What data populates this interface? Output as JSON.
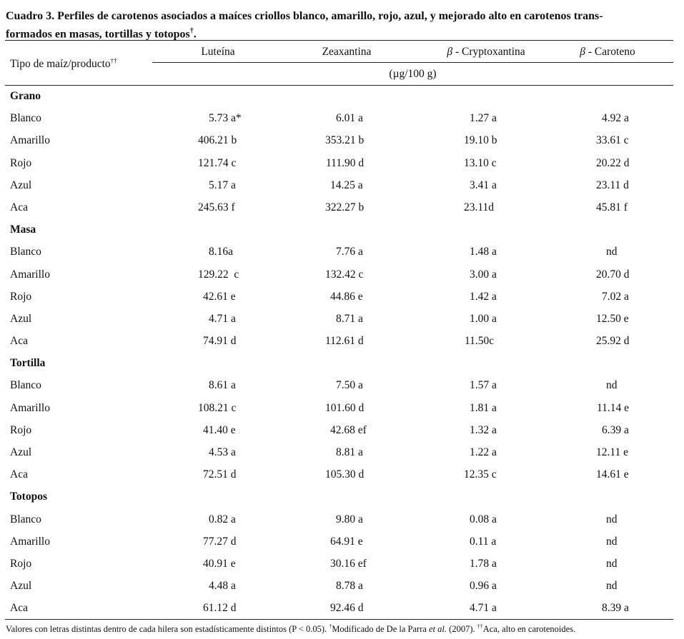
{
  "caption": {
    "line1": "Cuadro 3. Perfiles de carotenos asociados a maíces criollos blanco, amarillo, rojo, azul, y mejorado alto en carotenos trans-",
    "line2_text": "formados en  masas, tortillas y totopos",
    "line2_mark": "†",
    "line2_end": "."
  },
  "header": {
    "tipo": "Tipo de maíz/producto",
    "tipo_mark": "††",
    "col_luteina": "Luteína",
    "col_zeaxantina": "Zeaxantina",
    "col_crypto_greek": "β",
    "col_crypto_text": " - Cryptoxantina",
    "col_caroteno_greek": "β",
    "col_caroteno_text": " - Caroteno",
    "units": "(µg/100 g)"
  },
  "rows": [
    {
      "name": "Grano",
      "section": true
    },
    {
      "name": "Blanco",
      "v": [
        "5.73 a*",
        "6.01 a",
        "1.27 a",
        "4.92 a"
      ]
    },
    {
      "name": "Amarillo",
      "v": [
        "406.21 b",
        "353.21 b",
        "19.10 b",
        "33.61 c"
      ]
    },
    {
      "name": "Rojo",
      "v": [
        "121.74 c",
        "111.90 d",
        "13.10 c",
        "20.22 d"
      ]
    },
    {
      "name": "Azul",
      "v": [
        "5.17 a",
        "14.25 a",
        "3.41 a",
        "23.11 d"
      ]
    },
    {
      "name": "Aca",
      "v": [
        "245.63 f",
        "322.27 b",
        "23.11d",
        "45.81 f"
      ]
    },
    {
      "name": "Masa",
      "section": true
    },
    {
      "name": "Blanco",
      "v": [
        "8.16a",
        "7.76 a",
        "1.48 a",
        "nd"
      ]
    },
    {
      "name": "Amarillo",
      "v": [
        "129.22  c",
        "132.42 c",
        "3.00 a",
        "20.70 d"
      ]
    },
    {
      "name": "Rojo",
      "v": [
        "42.61 e",
        "44.86 e",
        "1.42 a",
        "7.02 a"
      ]
    },
    {
      "name": "Azul",
      "v": [
        "4.71 a",
        "8.71 a",
        "1.00 a",
        "12.50 e"
      ]
    },
    {
      "name": "Aca",
      "v": [
        "74.91 d",
        "112.61 d",
        "11.50c",
        "25.92 d"
      ]
    },
    {
      "name": "Tortilla",
      "section": true
    },
    {
      "name": "Blanco",
      "v": [
        "8.61 a",
        "7.50 a",
        "1.57 a",
        "nd"
      ]
    },
    {
      "name": "Amarillo",
      "v": [
        "108.21 c",
        "101.60 d",
        "1.81 a",
        "11.14 e"
      ]
    },
    {
      "name": "Rojo",
      "v": [
        "41.40 e",
        "42.68 ef",
        "1.32 a",
        "6.39 a"
      ]
    },
    {
      "name": "Azul",
      "v": [
        "4.53 a",
        "8.81 a",
        "1.22 a",
        "12.11 e"
      ]
    },
    {
      "name": "Aca",
      "v": [
        "72.51 d",
        "105.30 d",
        "12.35 c",
        "14.61 e"
      ]
    },
    {
      "name": "Totopos",
      "section": true
    },
    {
      "name": "Blanco",
      "v": [
        "0.82 a",
        "9.80 a",
        "0.08 a",
        "nd"
      ]
    },
    {
      "name": "Amarillo",
      "v": [
        "77.27 d",
        "64.91 e",
        "0.11 a",
        "nd"
      ]
    },
    {
      "name": "Rojo",
      "v": [
        "40.91 e",
        "30.16 ef",
        "1.78 a",
        "nd"
      ]
    },
    {
      "name": "Azul",
      "v": [
        "4.48 a",
        "8.78 a",
        "0.96 a",
        "nd"
      ]
    },
    {
      "name": "Aca",
      "v": [
        "61.12 d",
        "92.46 d",
        "4.71 a",
        "8.39 a"
      ]
    }
  ],
  "footnote": {
    "part1": "Valores con letras distintas dentro de cada hilera son estadísticamente distintos (P < 0.05). ",
    "mark1": "†",
    "part2": "Modificado de De la Parra ",
    "italic": "et al.",
    "part3": " (2007). ",
    "mark2": "††",
    "part4": "Aca, alto en carotenoides."
  }
}
